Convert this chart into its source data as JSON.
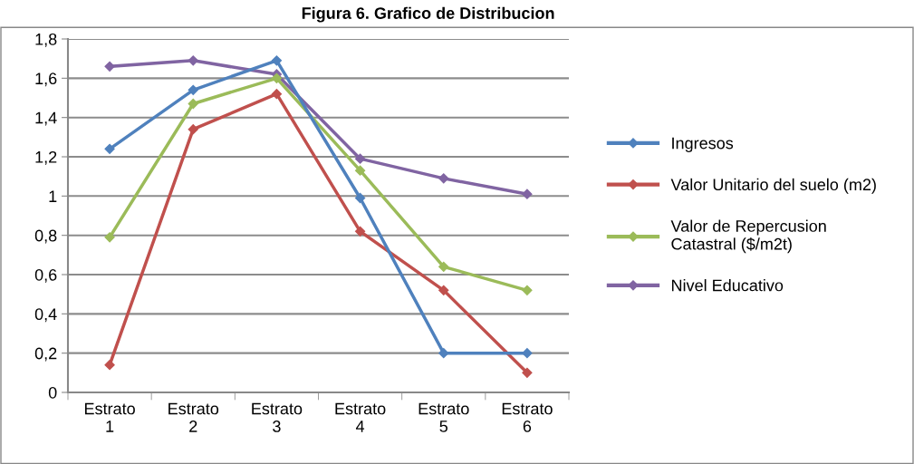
{
  "chart_data": {
    "type": "line",
    "title": "Figura 6. Grafico de Distribucion",
    "categories": [
      "Estrato\n1",
      "Estrato\n2",
      "Estrato\n3",
      "Estrato\n4",
      "Estrato\n5",
      "Estrato\n6"
    ],
    "series": [
      {
        "name": "Ingresos",
        "color": "#4f81bd",
        "values": [
          1.24,
          1.54,
          1.69,
          0.99,
          0.2,
          0.2
        ]
      },
      {
        "name": "Valor Unitario del suelo (m2)",
        "color": "#c0504d",
        "values": [
          0.14,
          1.34,
          1.52,
          0.82,
          0.52,
          0.1
        ]
      },
      {
        "name": "Valor de Repercusion\nCatastral ($/m2t)",
        "color": "#9bbb59",
        "values": [
          0.79,
          1.47,
          1.6,
          1.13,
          0.64,
          0.52
        ]
      },
      {
        "name": "Nivel Educativo",
        "color": "#8064a2",
        "values": [
          1.66,
          1.69,
          1.62,
          1.19,
          1.09,
          1.01
        ]
      }
    ],
    "ylim": [
      0,
      1.8
    ],
    "yticks": [
      0,
      {
        "value": 0.2,
        "label": "0,2"
      },
      {
        "value": 0.4,
        "label": "0,4"
      },
      {
        "value": 0.6,
        "label": "0,6"
      },
      {
        "value": 0.8,
        "label": "0,8"
      },
      1,
      {
        "value": 1.2,
        "label": "1,2"
      },
      {
        "value": 1.4,
        "label": "1,4"
      },
      {
        "value": 1.6,
        "label": "1,6"
      },
      {
        "value": 1.8,
        "label": "1,8"
      }
    ],
    "grid": "y",
    "legend": "right",
    "marker": "diamond",
    "line_style": "solid"
  }
}
